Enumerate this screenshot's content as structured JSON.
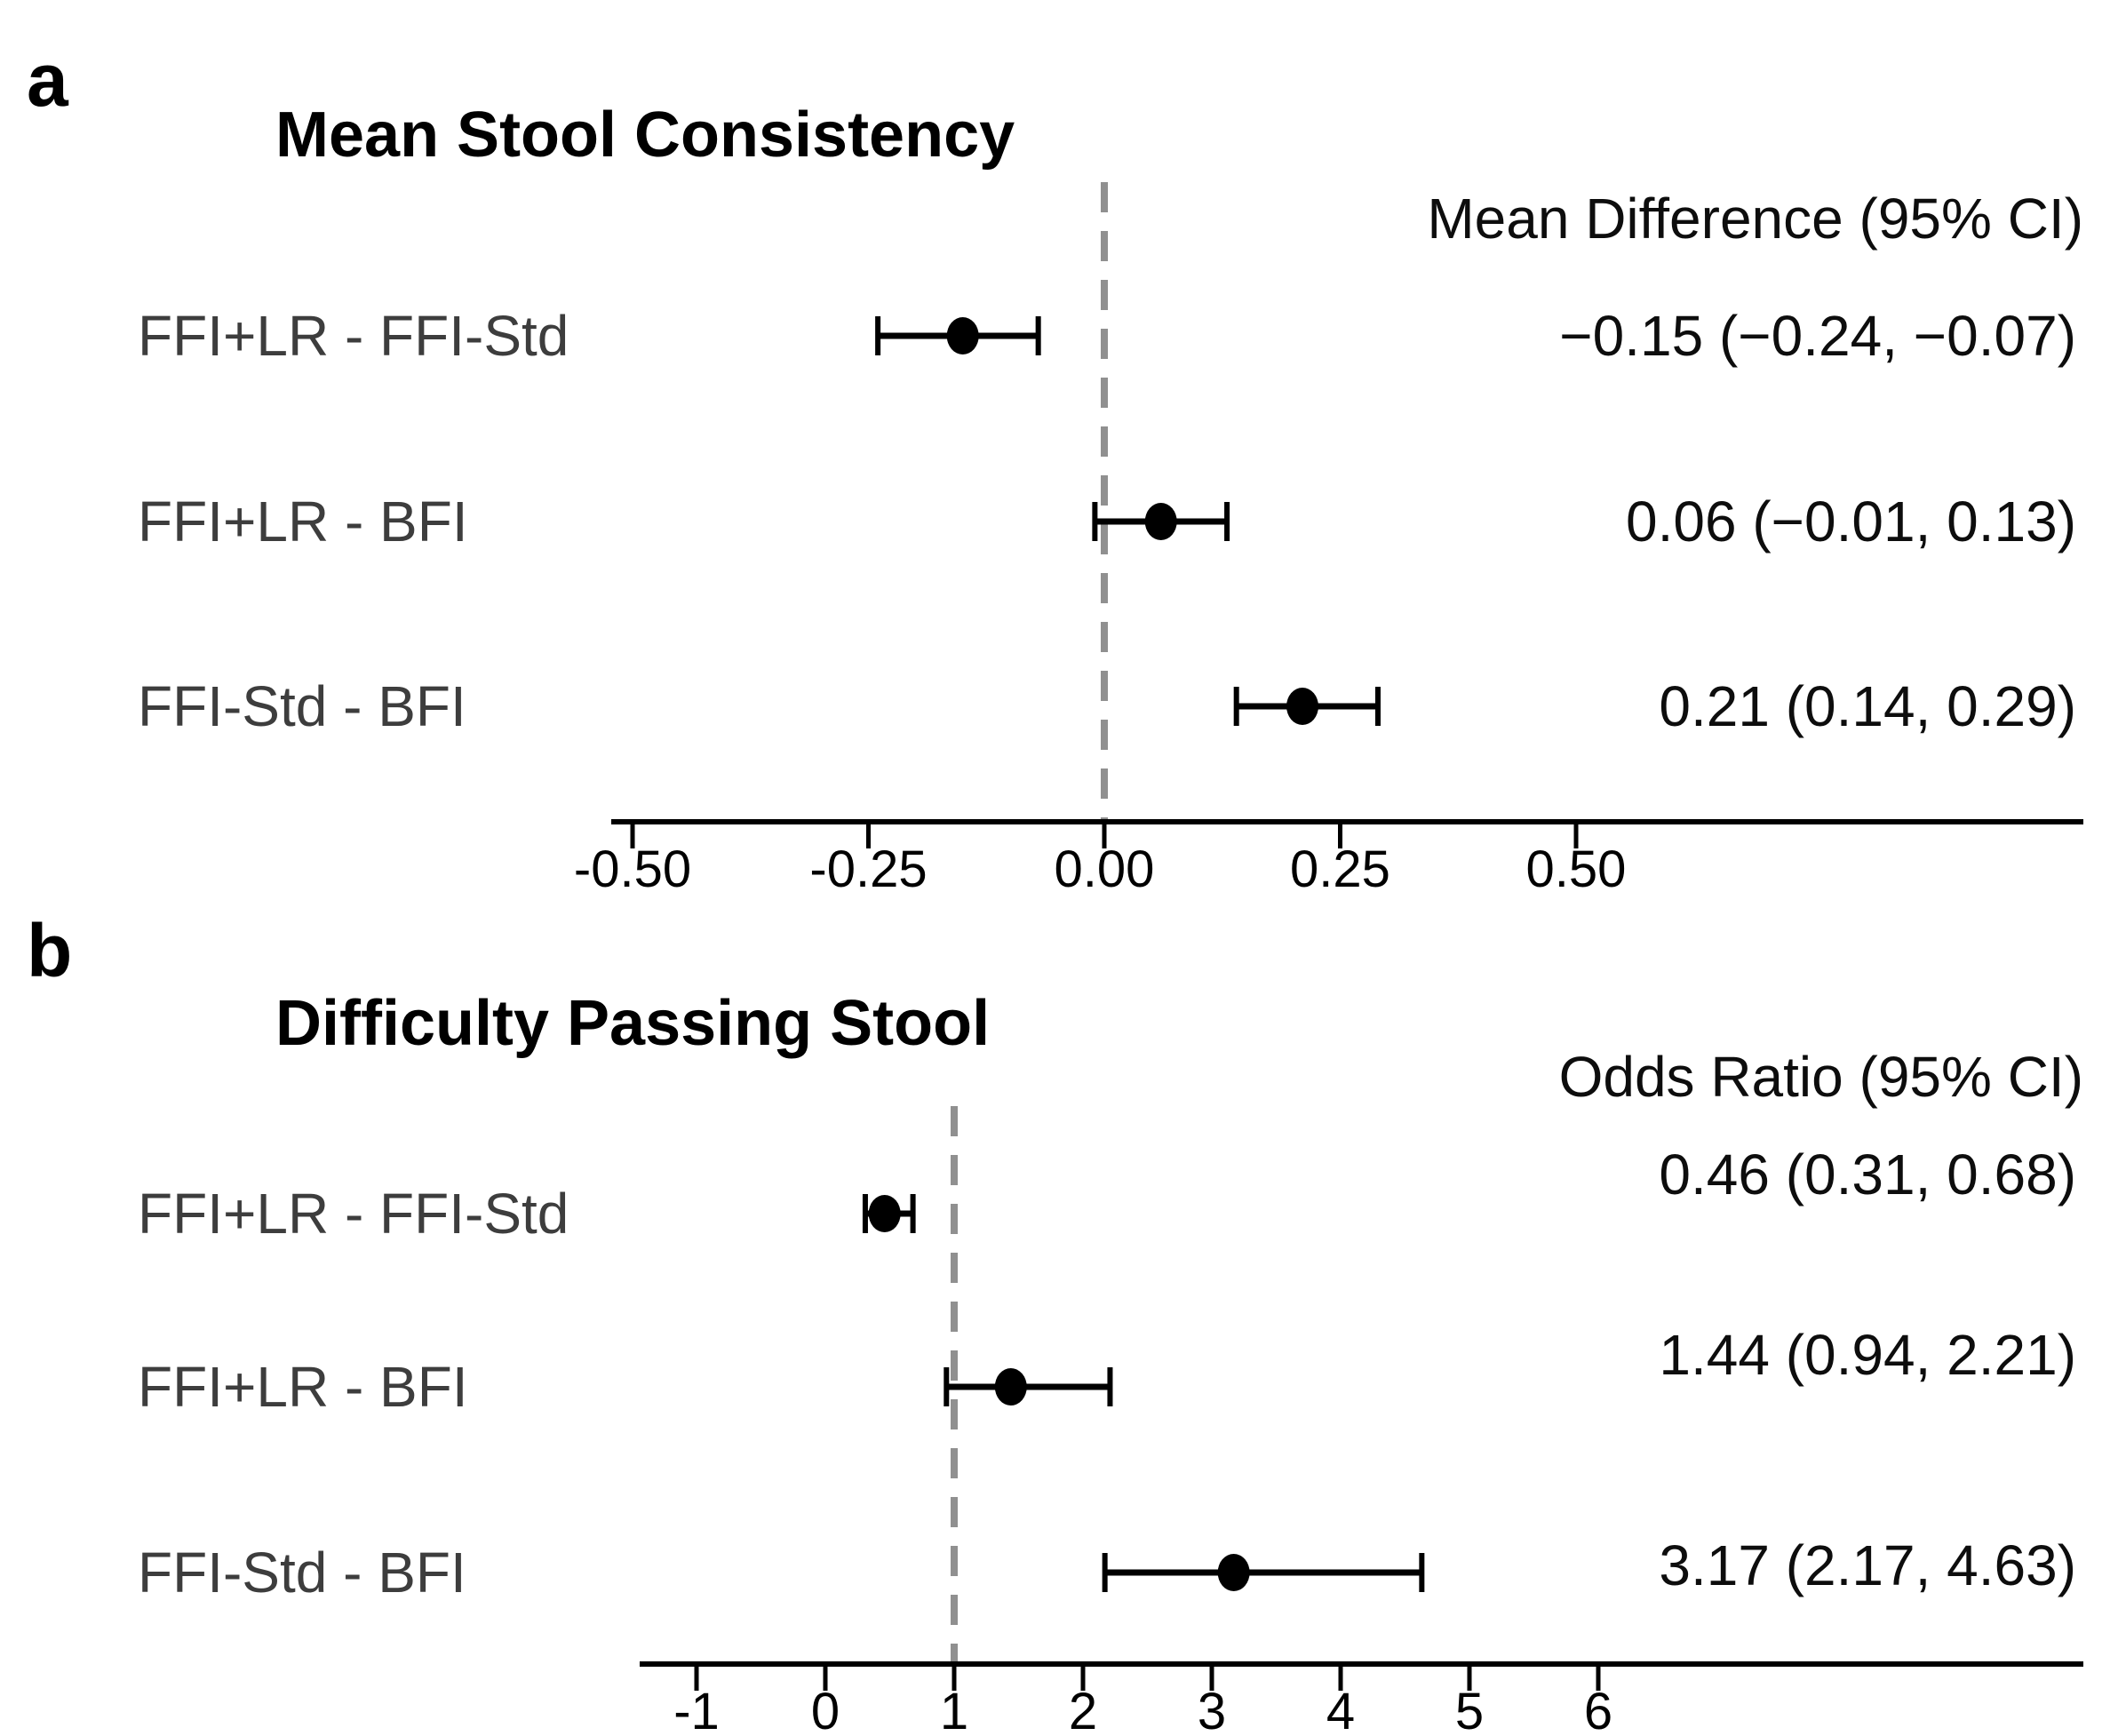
{
  "chart_data": [
    {
      "type": "forest",
      "panel_label": "a",
      "title": "Mean Stool Consistency",
      "value_column_header": "Mean Difference (95% CI)",
      "x_axis": {
        "tick_labels": [
          "-0.50",
          "-0.25",
          "0.00",
          "0.25",
          "0.50"
        ],
        "tick_values": [
          -0.5,
          -0.25,
          0,
          0.25,
          0.5
        ]
      },
      "reference_line": 0,
      "rows": [
        {
          "label": "FFI+LR - FFI-Std",
          "estimate": -0.15,
          "ci_lower": -0.24,
          "ci_upper": -0.07,
          "display": "−0.15 (−0.24, −0.07)"
        },
        {
          "label": "FFI+LR - BFI",
          "estimate": 0.06,
          "ci_lower": -0.01,
          "ci_upper": 0.13,
          "display": "0.06 (−0.01, 0.13)"
        },
        {
          "label": "FFI-Std - BFI",
          "estimate": 0.21,
          "ci_lower": 0.14,
          "ci_upper": 0.29,
          "display": "0.21 (0.14, 0.29)"
        }
      ]
    },
    {
      "type": "forest",
      "panel_label": "b",
      "title": "Difficulty Passing Stool",
      "value_column_header": "Odds Ratio (95% CI)",
      "x_axis": {
        "tick_labels": [
          "-1",
          "0",
          "1",
          "2",
          "3",
          "4",
          "5",
          "6"
        ],
        "tick_values": [
          -1,
          0,
          1,
          2,
          3,
          4,
          5,
          6
        ]
      },
      "reference_line": 1,
      "rows": [
        {
          "label": "FFI+LR - FFI-Std",
          "estimate": 0.46,
          "ci_lower": 0.31,
          "ci_upper": 0.68,
          "display": "0.46 (0.31, 0.68)"
        },
        {
          "label": "FFI+LR - BFI",
          "estimate": 1.44,
          "ci_lower": 0.94,
          "ci_upper": 2.21,
          "display": "1.44 (0.94, 2.21)"
        },
        {
          "label": "FFI-Std - BFI",
          "estimate": 3.17,
          "ci_lower": 2.17,
          "ci_upper": 4.63,
          "display": "3.17 (2.17, 4.63)"
        }
      ]
    }
  ],
  "colors": {
    "marker": "#000000",
    "axis": "#000000",
    "error_bar": "#000000",
    "reference_line": "#909090",
    "row_label": "#3d3d3d",
    "text": "#0d0d0d"
  }
}
